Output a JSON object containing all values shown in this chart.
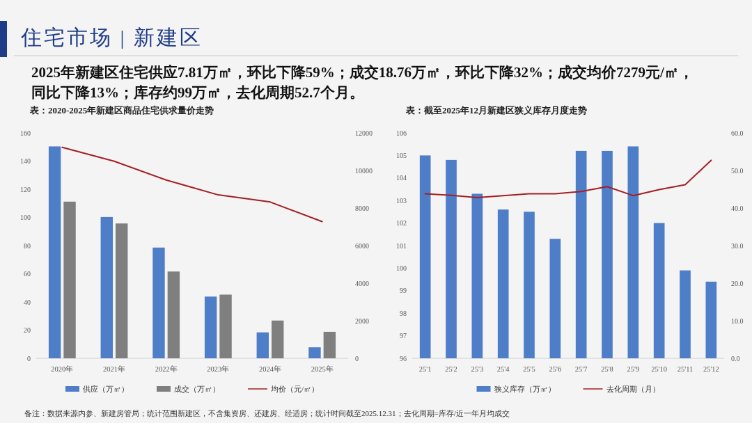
{
  "chart_data": [
    {
      "type": "other",
      "title": "住宅市场 | 新建区",
      "subtitle": "2025年新建区住宅供应7.81万㎡，环比下降59%；成交18.76万㎡，环比下降32%；成交均价7279元/㎡，同比下降13%；库存约99万㎡，去化周期52.7个月。",
      "annotations": [
        "备注：数据来源内参、新建房管局；统计范围新建区，不含集资房、还建房、经适房；统计时间截至2025.12.31；去化周期=库存/近一年月均成交"
      ]
    },
    {
      "type": "bar",
      "title": "表：2020-2025年新建区商品住宅供求量价走势",
      "categories": [
        "2020年",
        "2021年",
        "2022年",
        "2023年",
        "2024年",
        "2025年"
      ],
      "series": [
        {
          "name": "供应（万㎡）",
          "color": "#4f7ec9",
          "values": [
            150.4,
            100.3,
            78.6,
            43.8,
            18.4,
            7.8
          ]
        },
        {
          "name": "成交（万㎡）",
          "color": "#7f7f7f",
          "values": [
            111.2,
            95.7,
            61.6,
            45.2,
            26.8,
            18.8
          ]
        },
        {
          "name": "均价（元/㎡）",
          "type": "line",
          "axis": "y2",
          "color": "#a31f24",
          "values": [
            11230,
            10490,
            9490,
            8700,
            8320,
            7280
          ]
        }
      ],
      "ylim": [
        0,
        160
      ],
      "yticks": [
        0,
        20,
        40,
        60,
        80,
        100,
        120,
        140,
        160
      ],
      "y2lim": [
        0,
        12000
      ],
      "y2ticks": [
        0,
        2000,
        4000,
        6000,
        8000,
        10000,
        12000
      ],
      "legend": "bottom"
    },
    {
      "type": "bar",
      "title": "表：截至2025年12月新建区狭义库存月度走势",
      "categories": [
        "25'1",
        "25'2",
        "25'3",
        "25'4",
        "25'5",
        "25'6",
        "25'7",
        "25'8",
        "25'9",
        "25'10",
        "25'11",
        "25'12"
      ],
      "series": [
        {
          "name": "狭义库存（万㎡）",
          "color": "#4f7ec9",
          "values": [
            105.0,
            104.8,
            103.3,
            102.6,
            102.5,
            101.3,
            105.2,
            105.2,
            105.4,
            102.0,
            99.9,
            99.4
          ]
        },
        {
          "name": "去化周期（月）",
          "type": "line",
          "axis": "y2",
          "color": "#a31f24",
          "values": [
            43.8,
            43.4,
            42.8,
            43.3,
            43.8,
            43.8,
            44.4,
            45.7,
            43.3,
            44.9,
            46.2,
            52.7
          ]
        }
      ],
      "ylim": [
        96,
        106
      ],
      "yticks": [
        96,
        97,
        98,
        99,
        100,
        101,
        102,
        103,
        104,
        105,
        106
      ],
      "y2lim": [
        0,
        60
      ],
      "y2ticks": [
        {
          "value": 0,
          "label": "0.0"
        },
        {
          "value": 10,
          "label": "10.0"
        },
        {
          "value": 20,
          "label": "20.0"
        },
        {
          "value": 30,
          "label": "30.0"
        },
        {
          "value": 40,
          "label": "40.0"
        },
        {
          "value": 50,
          "label": "50.0"
        },
        {
          "value": 60,
          "label": "60.0"
        }
      ],
      "legend": "bottom"
    }
  ]
}
